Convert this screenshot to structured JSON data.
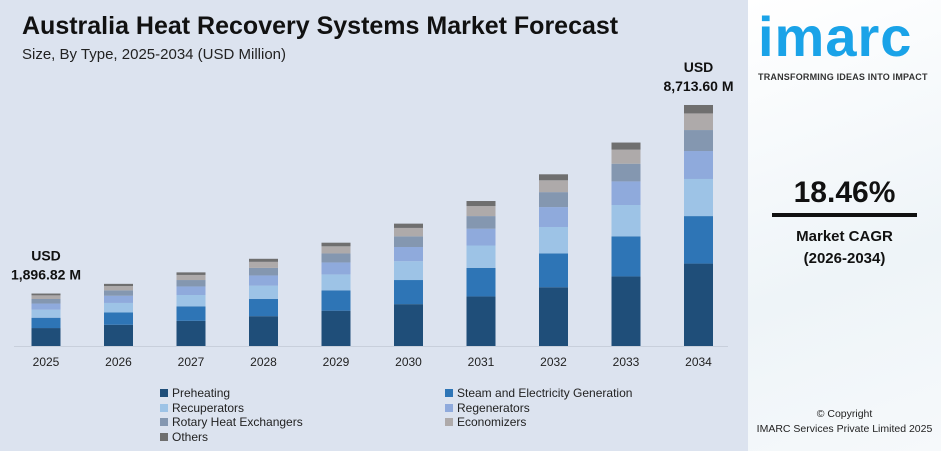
{
  "header": {
    "title": "Australia Heat Recovery Systems Market Forecast",
    "subtitle": "Size, By Type, 2025-2034 (USD Million)"
  },
  "chart_data": {
    "type": "bar",
    "stacked": true,
    "title": "Australia Heat Recovery Systems Market Forecast",
    "subtitle": "Size, By Type, 2025-2034 (USD Million)",
    "categories": [
      "2025",
      "2026",
      "2027",
      "2028",
      "2029",
      "2030",
      "2031",
      "2032",
      "2033",
      "2034"
    ],
    "series": [
      {
        "name": "Preheating",
        "color": "#1f4e79",
        "values": [
          649,
          768,
          910,
          1078,
          1277,
          1513,
          1793,
          2124,
          2516,
          2980
        ]
      },
      {
        "name": "Steam and Electricity Generation",
        "color": "#2e75b6",
        "values": [
          374,
          443,
          524,
          621,
          736,
          872,
          1033,
          1223,
          1449,
          1717
        ]
      },
      {
        "name": "Recuperators",
        "color": "#9dc3e6",
        "values": [
          292,
          346,
          410,
          486,
          575,
          681,
          807,
          956,
          1133,
          1342
        ]
      },
      {
        "name": "Regenerators",
        "color": "#8faadc",
        "values": [
          220,
          261,
          309,
          366,
          433,
          513,
          608,
          720,
          853,
          1011
        ]
      },
      {
        "name": "Rotary Heat Exchangers",
        "color": "#8497b0",
        "values": [
          165,
          195,
          232,
          274,
          325,
          385,
          456,
          540,
          640,
          758
        ]
      },
      {
        "name": "Economizers",
        "color": "#aeaaaa",
        "values": [
          131,
          155,
          184,
          218,
          258,
          305,
          362,
          428,
          508,
          601
        ]
      },
      {
        "name": "Others",
        "color": "#6f6f6f",
        "values": [
          66,
          79,
          93,
          110,
          131,
          155,
          183,
          217,
          257,
          305
        ]
      }
    ],
    "annotations": [
      {
        "category": "2025",
        "line1": "USD",
        "line2": "1,896.82 M"
      },
      {
        "category": "2034",
        "line1": "USD",
        "line2": "8,713.60 M"
      }
    ],
    "ylim": [
      0,
      8713.6
    ],
    "grid": false,
    "legend": "bottom"
  },
  "brand": {
    "logo": "imarc",
    "tagline": "TRANSFORMING IDEAS INTO IMPACT"
  },
  "cagr": {
    "value": "18.46%",
    "label": "Market CAGR",
    "period": "(2026-2034)"
  },
  "footer": {
    "copyright": "© Copyright",
    "company": "IMARC Services Private Limited 2025"
  }
}
